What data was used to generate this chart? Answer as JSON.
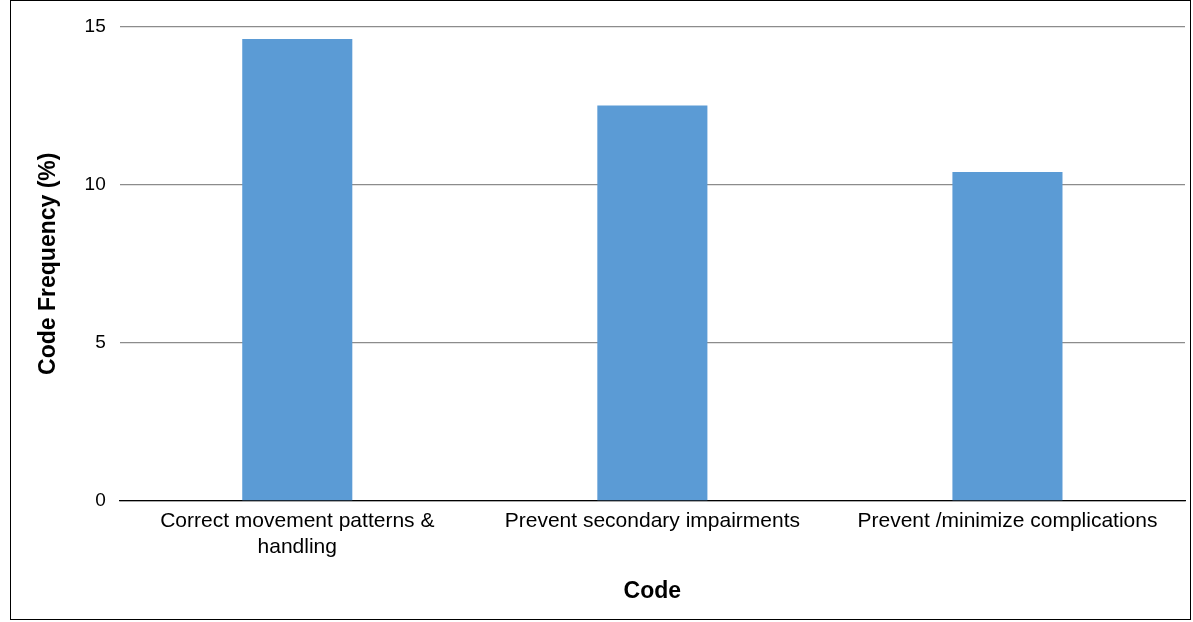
{
  "chart_data": {
    "type": "bar",
    "xlabel": "Code",
    "ylabel": "Code Frequency (%)",
    "categories": [
      "Correct movement patterns & handling",
      "Prevent secondary impairments",
      "Prevent /minimize complications"
    ],
    "values": [
      14.6,
      12.5,
      10.4
    ],
    "color": "#5b9bd5",
    "ylim": [
      0,
      15
    ],
    "yticks": [
      0,
      5,
      10,
      15
    ],
    "grid": "y",
    "legend": false
  }
}
